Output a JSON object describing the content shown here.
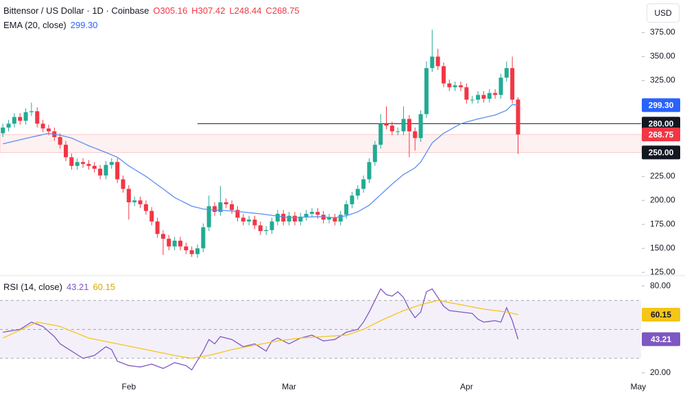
{
  "chart_data": [
    {
      "type": "candlestick",
      "title": "Bittensor / US Dollar · 1D · Coinbase",
      "ohlc_labels": [
        "O305.16",
        "H307.42",
        "L248.44",
        "C268.75"
      ],
      "currency": "USD",
      "categories": [
        null,
        null,
        null,
        null,
        null,
        null,
        null,
        null,
        null,
        null,
        null,
        null,
        null,
        null,
        null,
        null,
        null,
        null,
        null,
        null,
        null,
        null,
        "Feb",
        null,
        null,
        null,
        null,
        null,
        null,
        null,
        null,
        null,
        null,
        null,
        null,
        null,
        null,
        null,
        null,
        null,
        null,
        null,
        null,
        null,
        null,
        null,
        null,
        null,
        null,
        null,
        "Mar",
        null,
        null,
        null,
        null,
        null,
        null,
        null,
        null,
        null,
        null,
        null,
        null,
        null,
        null,
        null,
        null,
        null,
        null,
        null,
        null,
        null,
        null,
        null,
        null,
        null,
        null,
        null,
        null,
        null,
        null,
        "Apr",
        null,
        null,
        null,
        null,
        null,
        null,
        null,
        null,
        null,
        null,
        null,
        null,
        null,
        null,
        null,
        null,
        null,
        null,
        null,
        null,
        null,
        null,
        null,
        null,
        null,
        null,
        null,
        null,
        null,
        "May"
      ],
      "open": [
        270,
        276,
        280,
        287,
        283,
        292,
        293,
        280,
        275,
        272,
        266,
        258,
        245,
        236,
        240,
        238,
        236,
        233,
        226,
        237,
        240,
        222,
        212,
        198,
        200,
        196,
        189,
        178,
        165,
        160,
        152,
        158,
        152,
        148,
        144,
        150,
        172,
        194,
        188,
        198,
        196,
        190,
        182,
        178,
        180,
        174,
        168,
        169,
        178,
        186,
        178,
        184,
        178,
        183,
        186,
        188,
        185,
        180,
        182,
        178,
        185,
        196,
        205,
        212,
        222,
        240,
        258,
        280,
        278,
        272,
        272,
        285,
        272,
        265,
        290,
        338,
        350,
        340,
        322,
        318,
        320,
        318,
        305,
        305,
        310,
        306,
        312,
        310,
        328,
        338,
        305.16,
        null,
        null,
        null,
        null,
        null,
        null,
        null,
        null,
        null,
        null,
        null,
        null,
        null,
        null,
        null,
        null,
        null,
        null,
        null,
        null,
        null
      ],
      "high": [
        280,
        284,
        291,
        291,
        296,
        302,
        297,
        284,
        279,
        276,
        270,
        262,
        249,
        244,
        244,
        242,
        240,
        237,
        241,
        244,
        244,
        226,
        216,
        204,
        204,
        200,
        193,
        182,
        169,
        164,
        162,
        162,
        156,
        152,
        154,
        176,
        205,
        198,
        215,
        202,
        200,
        194,
        186,
        184,
        184,
        178,
        173,
        182,
        190,
        190,
        188,
        188,
        187,
        190,
        192,
        192,
        189,
        186,
        186,
        189,
        200,
        209,
        216,
        226,
        244,
        262,
        290,
        298,
        282,
        276,
        298,
        289,
        276,
        294,
        345,
        378,
        358,
        344,
        326,
        324,
        324,
        322,
        309,
        314,
        314,
        316,
        316,
        332,
        345,
        350,
        307.42,
        null,
        null,
        null,
        null,
        null,
        null,
        null,
        null,
        null,
        null,
        null,
        null,
        null,
        null,
        null,
        null,
        null,
        null,
        null,
        null,
        null
      ],
      "low": [
        266,
        272,
        276,
        279,
        279,
        288,
        276,
        271,
        268,
        262,
        254,
        241,
        232,
        232,
        234,
        232,
        229,
        222,
        222,
        233,
        218,
        208,
        180,
        194,
        192,
        185,
        174,
        161,
        143,
        148,
        148,
        148,
        144,
        141,
        140,
        146,
        168,
        184,
        184,
        192,
        186,
        178,
        174,
        174,
        170,
        164,
        164,
        165,
        174,
        174,
        174,
        174,
        174,
        179,
        182,
        181,
        176,
        176,
        174,
        174,
        181,
        192,
        201,
        208,
        218,
        236,
        254,
        274,
        268,
        268,
        268,
        245,
        252,
        261,
        286,
        334,
        336,
        318,
        314,
        314,
        314,
        301,
        301,
        301,
        302,
        302,
        306,
        306,
        324,
        301,
        248.44,
        null,
        null,
        null,
        null,
        null,
        null,
        null,
        null,
        null,
        null,
        null,
        null,
        null,
        null,
        null,
        null,
        null,
        null,
        null,
        null,
        null
      ],
      "close": [
        276,
        280,
        287,
        283,
        292,
        293,
        280,
        275,
        272,
        266,
        258,
        245,
        236,
        240,
        238,
        236,
        233,
        226,
        237,
        240,
        222,
        212,
        198,
        200,
        196,
        189,
        178,
        165,
        160,
        152,
        158,
        152,
        148,
        144,
        150,
        172,
        194,
        188,
        198,
        196,
        190,
        182,
        178,
        180,
        174,
        168,
        169,
        178,
        186,
        178,
        184,
        178,
        183,
        186,
        188,
        185,
        180,
        182,
        178,
        185,
        196,
        205,
        212,
        222,
        240,
        258,
        280,
        278,
        272,
        272,
        285,
        272,
        265,
        290,
        338,
        350,
        340,
        322,
        318,
        320,
        318,
        305,
        305,
        310,
        306,
        312,
        310,
        328,
        338,
        305,
        268.75,
        null,
        null,
        null,
        null,
        null,
        null,
        null,
        null,
        null,
        null,
        null,
        null,
        null,
        null,
        null,
        null,
        null,
        null,
        null,
        null,
        null
      ],
      "up_color": "#22ab94",
      "down_color": "#f23645",
      "last_label": "268.75",
      "overlay": {
        "name": "EMA (20, close)",
        "value_label": "299.30",
        "color": "#5b8def",
        "badge_color": "#2962ff",
        "values": [
          259,
          260.4,
          261.8,
          263.2,
          264.6,
          266,
          267.3,
          268.7,
          270,
          269,
          268,
          266.5,
          265,
          262.3,
          259.7,
          257,
          254.7,
          252.3,
          250,
          247.5,
          245,
          240.5,
          236,
          232.3,
          228.7,
          225,
          220.7,
          216.3,
          212,
          207.5,
          203,
          200,
          197,
          194,
          192.5,
          191,
          190.5,
          190,
          189.7,
          189.3,
          189,
          188.4,
          187.8,
          187.2,
          186.6,
          186,
          185.2,
          184.4,
          183.6,
          182.8,
          182,
          182.2,
          182.4,
          182.6,
          182.8,
          183,
          182.7,
          182.3,
          182,
          183,
          184,
          186,
          188,
          191.5,
          195,
          200.5,
          206,
          211.5,
          217,
          222,
          227,
          230.5,
          234,
          240,
          250,
          260,
          265,
          270,
          273.3,
          276.7,
          280,
          281.7,
          283.3,
          285,
          286.3,
          287.7,
          289,
          291.5,
          294,
          300,
          299.3,
          null,
          null,
          null,
          null,
          null,
          null,
          null,
          null,
          null,
          null,
          null,
          null,
          null,
          null,
          null,
          null,
          null,
          null,
          null,
          null,
          null
        ]
      },
      "price_lines": [
        {
          "value": 280,
          "label": "280.00"
        },
        {
          "value": 250,
          "label": "250.00"
        }
      ],
      "ylim": [
        123,
        409
      ],
      "yticks": [
        {
          "value": 125,
          "label": "125.00"
        },
        {
          "value": 150,
          "label": "150.00"
        },
        {
          "value": 175,
          "label": "175.00"
        },
        {
          "value": 200,
          "label": "200.00"
        },
        {
          "value": 225,
          "label": "225.00"
        },
        {
          "value": 250,
          "label": "250.00"
        },
        {
          "value": 275,
          "label": "275.00"
        },
        {
          "value": 300,
          "label": "300.00"
        },
        {
          "value": 325,
          "label": "325.00"
        },
        {
          "value": 350,
          "label": "350.00"
        },
        {
          "value": 375,
          "label": "375.00"
        }
      ]
    },
    {
      "type": "line",
      "title": "RSI (14, close)",
      "series": [
        {
          "color": "#7e57c2",
          "badge_text": "#ffffff",
          "value_label": "43.21",
          "values": [
            48,
            48.7,
            49.3,
            50,
            52.5,
            55,
            53.5,
            52,
            48.5,
            45,
            40,
            37.5,
            35,
            32.5,
            30,
            31,
            32,
            35,
            38,
            36,
            28,
            26.5,
            25,
            24.5,
            24,
            25,
            26,
            24.5,
            23,
            25,
            27,
            26,
            25,
            22,
            28.5,
            35,
            43,
            40,
            45,
            44,
            43,
            40.5,
            38,
            39,
            40,
            37.5,
            35,
            42,
            44,
            42,
            40,
            42,
            44,
            45,
            46,
            44,
            42,
            42.5,
            43,
            45.5,
            48,
            49,
            50,
            55,
            62,
            70,
            78,
            74,
            73,
            76,
            72,
            64,
            58,
            62,
            76,
            78,
            72,
            66,
            63,
            62.5,
            62,
            61.5,
            61,
            57,
            55,
            55.5,
            56,
            55,
            65,
            56,
            43.21,
            null,
            null,
            null,
            null,
            null,
            null,
            null,
            null,
            null,
            null,
            null,
            null,
            null,
            null,
            null,
            null,
            null,
            null,
            null,
            null,
            null
          ]
        },
        {
          "color": "#f5c518",
          "badge_text": "#131722",
          "value_label": "60.15",
          "values": [
            44,
            45.8,
            47.7,
            49.5,
            51.3,
            53.2,
            55,
            54.3,
            53.5,
            52.8,
            52,
            50.4,
            48.8,
            47.2,
            45.6,
            44,
            43.2,
            42.4,
            41.6,
            40.8,
            40,
            39.2,
            38.4,
            37.6,
            36.8,
            36,
            35.2,
            34.4,
            33.6,
            32.8,
            32,
            31.3,
            30.7,
            30,
            30.7,
            31.3,
            32,
            33,
            34,
            35,
            36,
            36.8,
            37.5,
            38.3,
            39,
            39.8,
            40.5,
            41.3,
            42,
            42.5,
            43,
            43.5,
            44,
            44.3,
            44.5,
            44.8,
            45,
            45.3,
            45.5,
            45.8,
            46,
            47.3,
            48.7,
            50,
            52,
            54,
            56,
            57.8,
            59.5,
            61.3,
            63,
            64.3,
            65.7,
            67,
            68,
            69,
            70,
            69.3,
            68.5,
            67.8,
            67,
            66.3,
            65.5,
            64.8,
            64,
            63.5,
            63,
            62.5,
            62,
            61.1,
            60.15,
            null,
            null,
            null,
            null,
            null,
            null,
            null,
            null,
            null,
            null,
            null,
            null,
            null,
            null,
            null,
            null,
            null,
            null,
            null,
            null,
            null
          ]
        }
      ],
      "levels": [
        70,
        50,
        30
      ],
      "ylim": [
        14.2,
        86.2
      ],
      "yticks": [
        {
          "value": 20,
          "label": "20.00"
        },
        {
          "value": 80,
          "label": "80.00"
        }
      ]
    }
  ]
}
